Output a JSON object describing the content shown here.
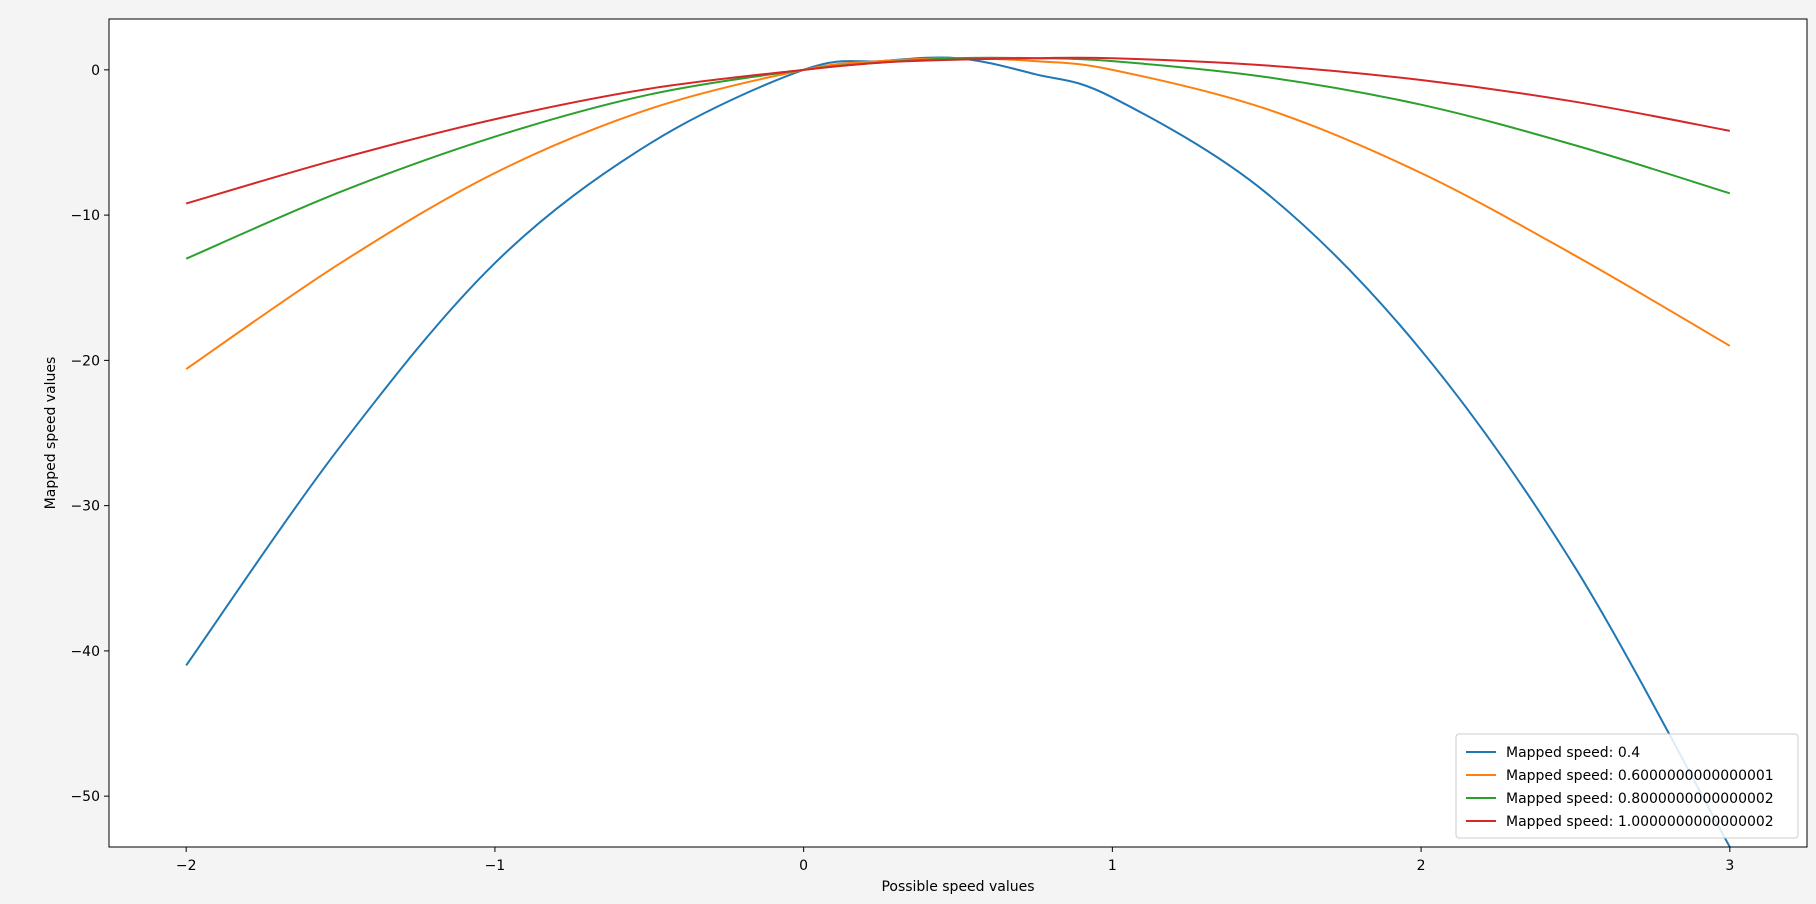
{
  "chart_data": {
    "type": "line",
    "title": "",
    "xlabel": "Possible speed values",
    "ylabel": "Mapped speed values",
    "xlim": [
      -2.25,
      3.25
    ],
    "ylim": [
      -53.5,
      3.5
    ],
    "xticks": [
      -2,
      -1,
      0,
      1,
      2,
      3
    ],
    "xtick_labels": [
      "−2",
      "−1",
      "0",
      "1",
      "2",
      "3"
    ],
    "yticks": [
      0,
      -10,
      -20,
      -30,
      -40,
      -50
    ],
    "ytick_labels": [
      "0",
      "−10",
      "−20",
      "−30",
      "−40",
      "−50"
    ],
    "grid": false,
    "legend_position": "lower-right",
    "x": [
      -2.0,
      -1.5,
      -1.0,
      -0.5,
      0.0,
      0.25,
      0.5,
      0.75,
      1.0,
      1.5,
      2.0,
      2.5,
      3.0
    ],
    "series": [
      {
        "name": "Mapped speed: 0.4",
        "color": "#1f77b4",
        "values": [
          -41.0,
          -25.9,
          -13.3,
          -5.1,
          0.0,
          0.6,
          0.8,
          -0.3,
          -1.9,
          -8.5,
          -19.3,
          -34.3,
          -53.5
        ]
      },
      {
        "name": "Mapped speed: 0.6000000000000001",
        "color": "#ff7f0e",
        "values": [
          -20.6,
          -13.3,
          -7.1,
          -2.7,
          0.0,
          0.6,
          0.8,
          0.6,
          0.0,
          -2.7,
          -7.1,
          -12.8,
          -19.0
        ]
      },
      {
        "name": "Mapped speed: 0.8000000000000002",
        "color": "#2ca02c",
        "values": [
          -13.0,
          -8.4,
          -4.6,
          -1.7,
          0.0,
          0.5,
          0.8,
          0.8,
          0.6,
          -0.5,
          -2.4,
          -5.2,
          -8.5
        ]
      },
      {
        "name": "Mapped speed: 1.0000000000000002",
        "color": "#d62728",
        "values": [
          -9.2,
          -6.1,
          -3.4,
          -1.3,
          0.0,
          0.5,
          0.7,
          0.8,
          0.8,
          0.3,
          -0.7,
          -2.2,
          -4.2
        ]
      }
    ]
  }
}
